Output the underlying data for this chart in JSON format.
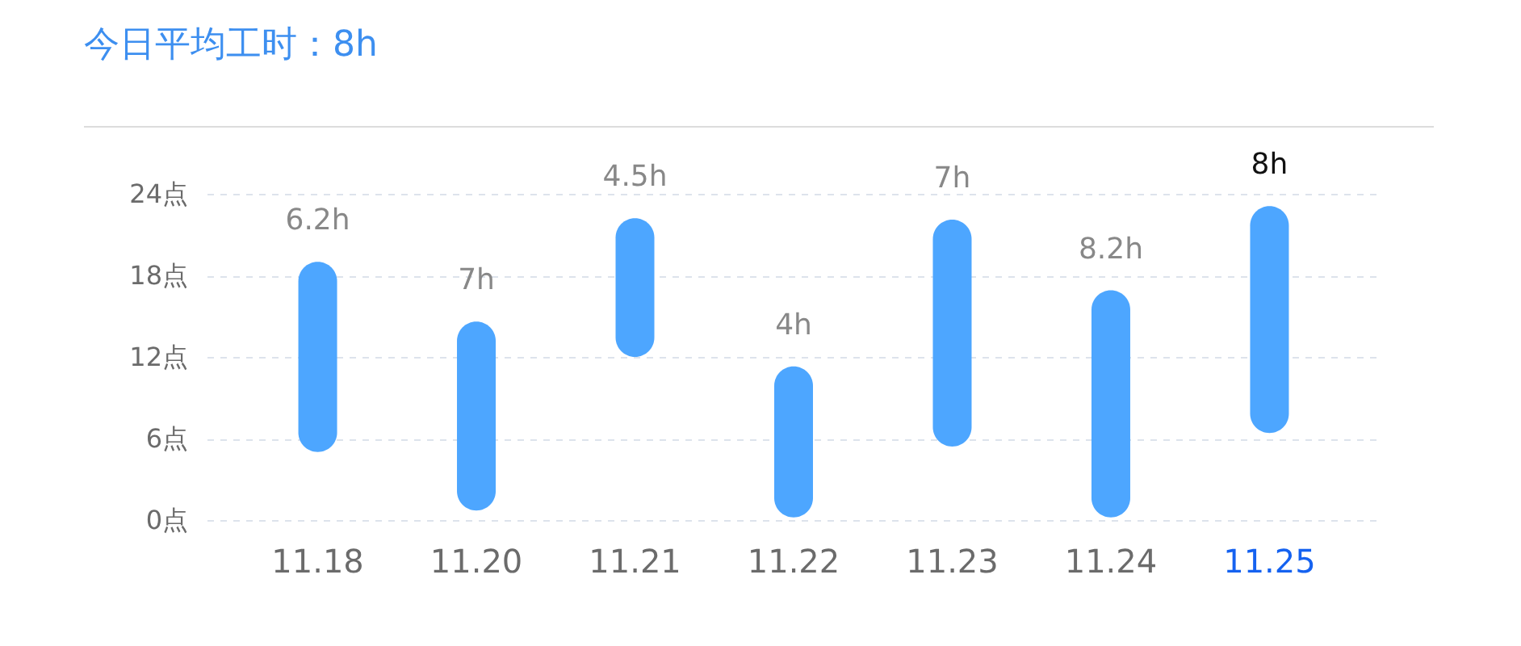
{
  "chart_data": {
    "type": "bar",
    "title": "今日平均工时：8h",
    "categories": [
      "11.18",
      "11.20",
      "11.21",
      "11.22",
      "11.23",
      "11.24",
      "11.25"
    ],
    "base": [
      5,
      0.7,
      12,
      0.2,
      5.4,
      0.2,
      6.4
    ],
    "values": [
      14,
      13.9,
      10.2,
      11.1,
      16.7,
      16.7,
      16.7
    ],
    "annotations": [
      {
        "text": "6.2h",
        "x": "11.18",
        "y": 19
      },
      {
        "text": "7h",
        "x": "11.20",
        "y": 14.6
      },
      {
        "text": "4.5h",
        "x": "11.21",
        "y": 22.2
      },
      {
        "text": "4h",
        "x": "11.22",
        "y": 11.3
      },
      {
        "text": "7h",
        "x": "11.23",
        "y": 22.1
      },
      {
        "text": "8.2h",
        "x": "11.24",
        "y": 16.9
      },
      {
        "text": "8h",
        "x": "11.25",
        "y": 23.1
      }
    ],
    "color": "#4da6ff",
    "ylim": [
      0,
      24
    ],
    "yticks": [
      {
        "value": 0,
        "label": "0点"
      },
      {
        "value": 6,
        "label": "6点"
      },
      {
        "value": 12,
        "label": "12点"
      },
      {
        "value": 18,
        "label": "18点"
      },
      {
        "value": 24,
        "label": "24点"
      }
    ],
    "grid": "y"
  }
}
